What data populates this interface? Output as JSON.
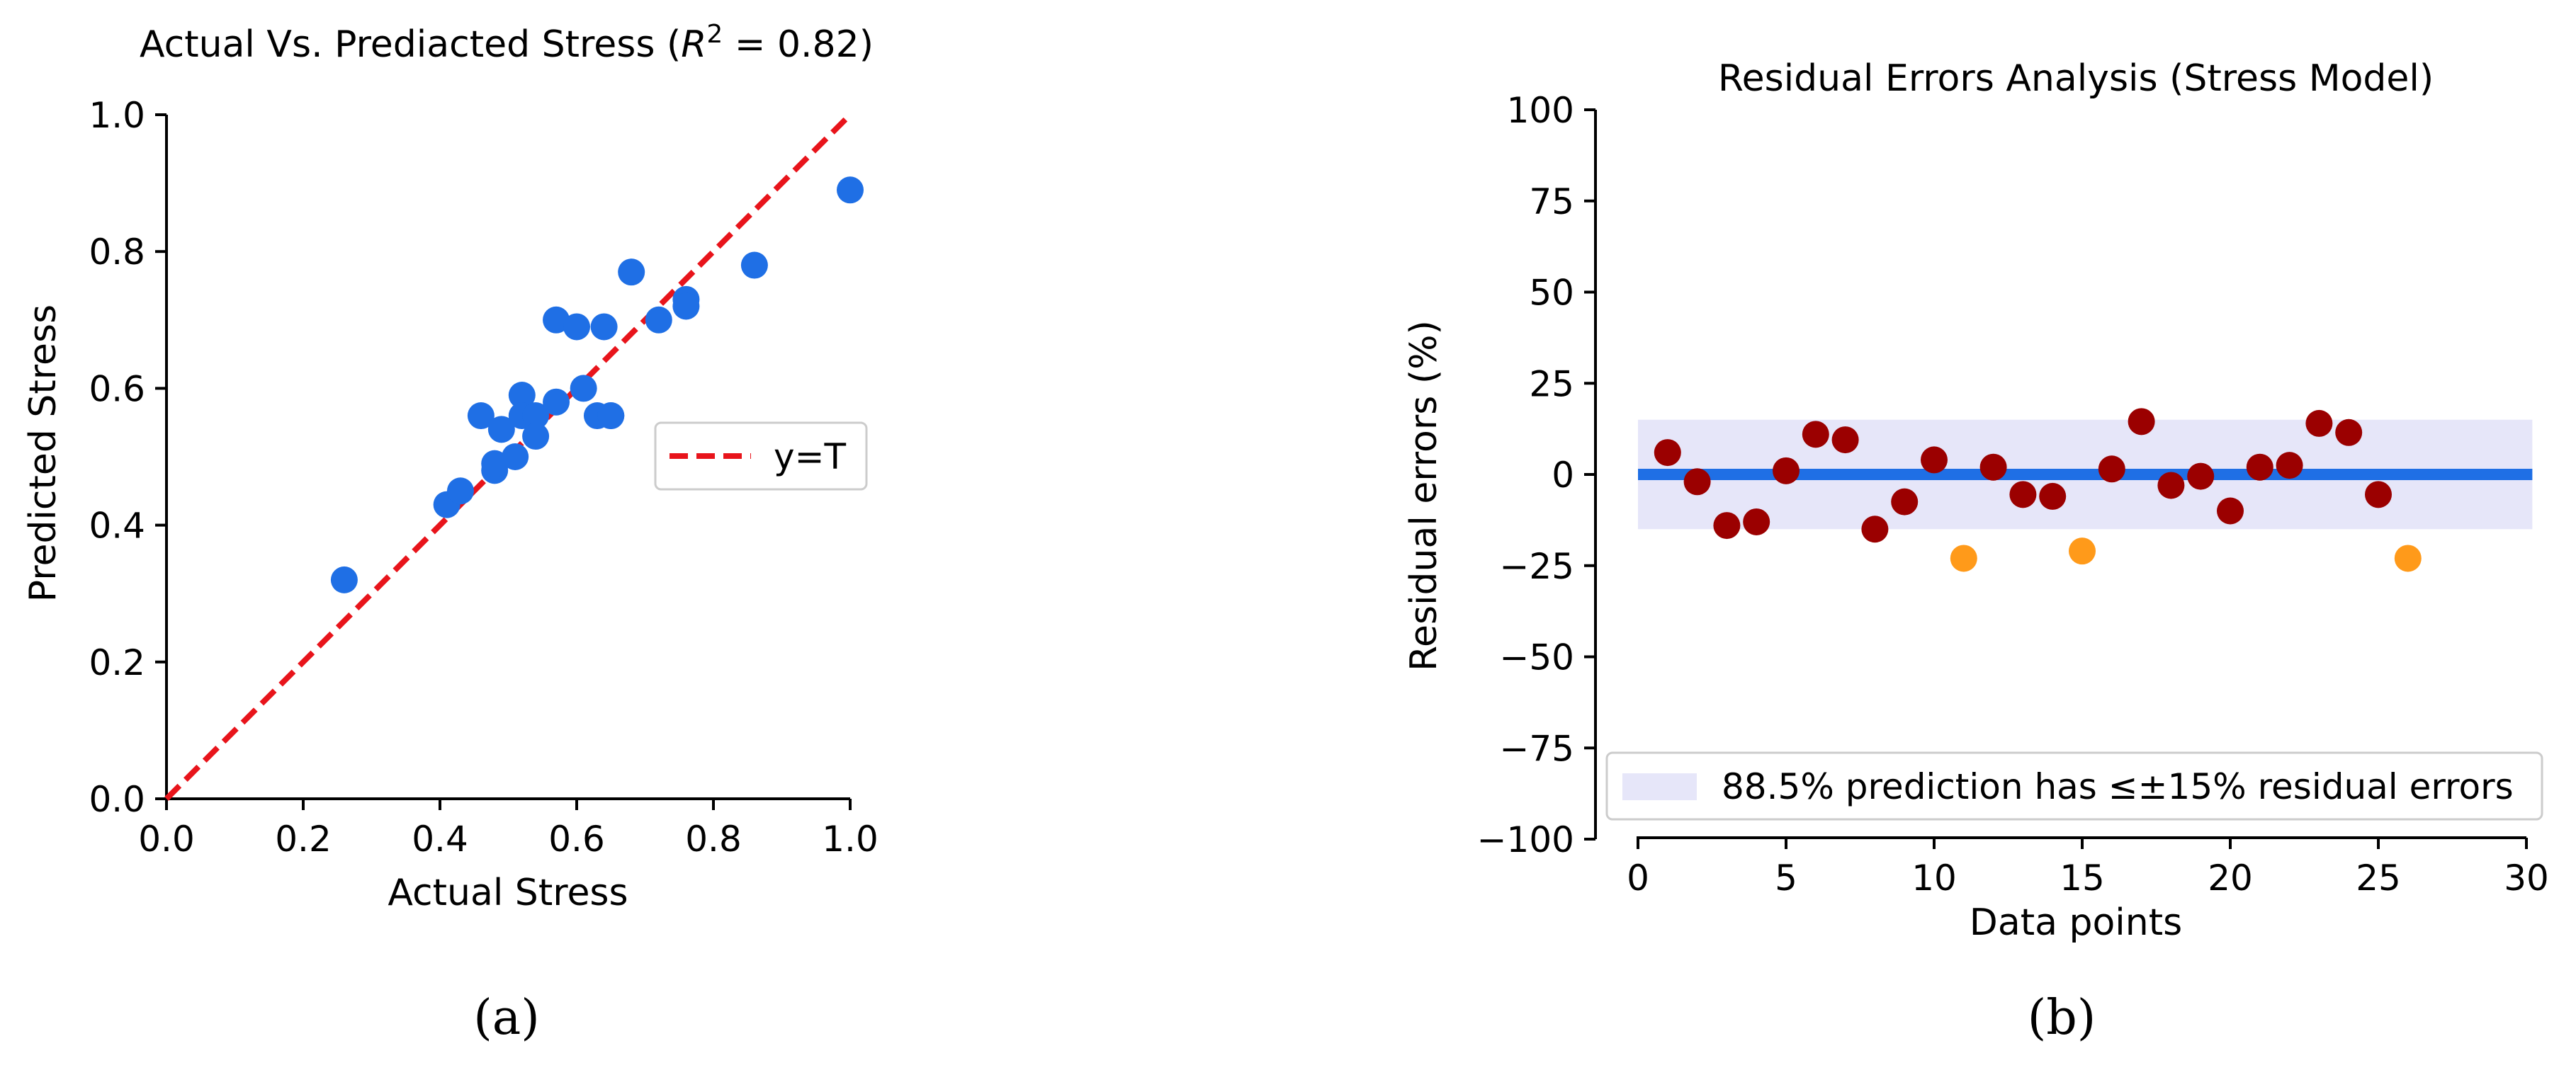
{
  "chart_data": [
    {
      "type": "scatter",
      "title": "Actual Vs. Prediacted Stress (",
      "title_r2": "R",
      "title_r2_exp": "2",
      "title_r2_value": " = 0.82)",
      "xlabel": "Actual Stress",
      "ylabel": "Predicted Stress",
      "xlim": [
        0,
        1
      ],
      "ylim": [
        0,
        1
      ],
      "xticks": [
        "0.0",
        "0.2",
        "0.4",
        "0.6",
        "0.8",
        "1.0"
      ],
      "yticks": [
        "0.0",
        "0.2",
        "0.4",
        "0.6",
        "0.8",
        "1.0"
      ],
      "point_color": "#1f6fe5",
      "line_color": "#e8141b",
      "legend": {
        "label": "y=T",
        "position": "center-right"
      },
      "x": [
        0.26,
        0.41,
        0.43,
        0.46,
        0.48,
        0.48,
        0.49,
        0.51,
        0.52,
        0.52,
        0.54,
        0.54,
        0.57,
        0.57,
        0.6,
        0.61,
        0.63,
        0.64,
        0.65,
        0.65,
        0.68,
        0.72,
        0.76,
        0.76,
        0.86,
        1.0
      ],
      "y": [
        0.32,
        0.43,
        0.45,
        0.56,
        0.48,
        0.49,
        0.54,
        0.5,
        0.59,
        0.56,
        0.56,
        0.53,
        0.58,
        0.7,
        0.69,
        0.6,
        0.56,
        0.69,
        0.56,
        0.56,
        0.77,
        0.7,
        0.73,
        0.72,
        0.78,
        0.89
      ],
      "panel_label": "(a)"
    },
    {
      "type": "scatter",
      "title": "Residual Errors Analysis (Stress Model)",
      "xlabel": "Data points",
      "ylabel": "Residual errors (%)",
      "xlim": [
        0,
        30
      ],
      "ylim": [
        -100,
        100
      ],
      "xticks": [
        "0",
        "5",
        "10",
        "15",
        "20",
        "25",
        "30"
      ],
      "yticks": [
        "100",
        "75",
        "50",
        "25",
        "0",
        "−25",
        "−50",
        "−75",
        "−100"
      ],
      "band": [
        -15,
        15
      ],
      "band_color": "#e6e6f9",
      "zero_line_color": "#1f6fe5",
      "within_color": "#9b0000",
      "outside_color": "#ff9a1a",
      "legend": {
        "label": "88.5% prediction has ≤±15% residual errors",
        "position": "lower-right"
      },
      "x": [
        1,
        2,
        3,
        4,
        5,
        6,
        7,
        8,
        9,
        10,
        11,
        12,
        13,
        14,
        15,
        16,
        17,
        18,
        19,
        20,
        21,
        22,
        23,
        24,
        25,
        26
      ],
      "y": [
        6,
        -2,
        -14,
        -13,
        1,
        11,
        9.5,
        -15,
        -7.5,
        4,
        -23,
        2,
        -5.5,
        -6,
        -21,
        1.5,
        14.5,
        -3,
        -0.5,
        -10,
        2,
        2.5,
        14,
        11.5,
        -5.5,
        -23
      ],
      "panel_label": "(b)"
    }
  ]
}
